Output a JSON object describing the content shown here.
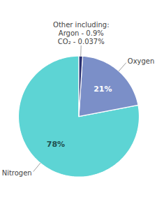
{
  "chart_data": {
    "type": "pie",
    "categories": [
      "Nitrogen",
      "Oxygen",
      null
    ],
    "values": [
      78,
      21,
      1
    ],
    "colors": [
      "#5dd4d4",
      "#7b8fc8",
      "#2a3070"
    ],
    "data_labels": true,
    "value_labels": [
      "78%",
      "21%",
      null
    ],
    "annotations": [
      "Other including:",
      "Argon - 0.9%",
      "CO₂ - 0.037%"
    ]
  }
}
